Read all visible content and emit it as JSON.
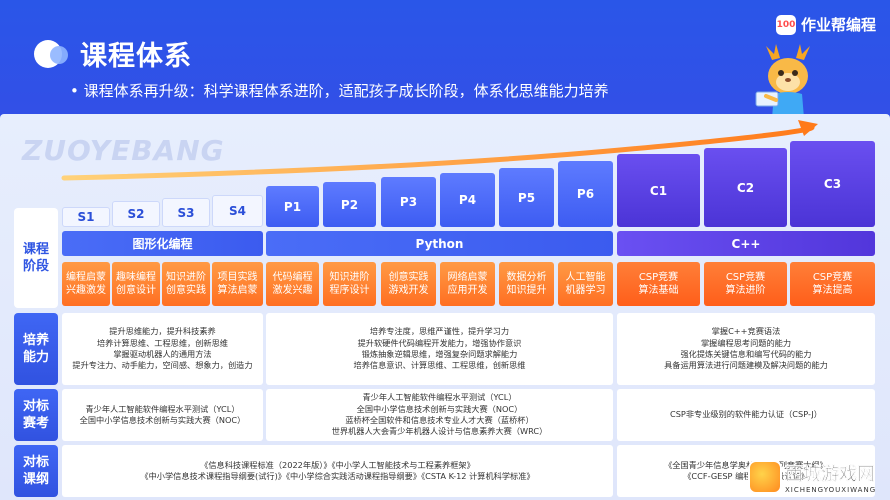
{
  "header": {
    "title": "课程体系",
    "subtitle": "• 课程体系再升级：科学课程体系进阶，适配孩子成长阶段，体系化思维能力培养",
    "brand_icon_text": "100",
    "brand_name": "作业帮编程"
  },
  "watermark": "ZUOYEBANG",
  "levels": [
    "S1",
    "S2",
    "S3",
    "S4",
    "P1",
    "P2",
    "P3",
    "P4",
    "P5",
    "P6",
    "C1",
    "C2",
    "C3"
  ],
  "tracks": [
    {
      "label": "图形化编程"
    },
    {
      "label": "Python"
    },
    {
      "label": "C++"
    }
  ],
  "stage_label": "课程\n阶段",
  "topics": [
    "编程启蒙\n兴趣激发",
    "趣味编程\n创意设计",
    "知识进阶\n创意实践",
    "项目实践\n算法启蒙",
    "代码编程\n激发兴趣",
    "知识进阶\n程序设计",
    "创意实践\n游戏开发",
    "网络启蒙\n应用开发",
    "数据分析\n知识提升",
    "人工智能\n机器学习",
    "CSP竞赛\n算法基础",
    "CSP竞赛\n算法进阶",
    "CSP竞赛\n算法提高"
  ],
  "rows": [
    {
      "label": "培养\n能力",
      "cells": [
        [
          "提升思维能力，提升科技素养",
          "培养计算思维、工程思维，创新思维",
          "掌握驱动机器人的通用方法",
          "提升专注力、动手能力，空间感、想象力，创造力"
        ],
        [
          "培养专注度，思维严谨性，提升学习力",
          "提升软硬件代码编程开发能力，增强协作意识",
          "锻炼抽象逆辑思维，增强复杂问题求解能力",
          "培养信息意识、计算思维、工程思维，创新思维"
        ],
        [
          "掌握C++竞赛语法",
          "掌握编程思考问题的能力",
          "强化提炼关键信息和编写代码的能力",
          "具备运用算法进行问题建模及解决问题的能力"
        ]
      ]
    },
    {
      "label": "对标\n赛考",
      "cells": [
        [
          "青少年人工智能软件编程水平测试（YCL）",
          "全国中小学信息技术创新与实践大赛（NOC）"
        ],
        [
          "青少年人工智能软件编程水平测试（YCL）",
          "全国中小学信息技术创新与实践大赛（NOC）",
          "蓝桥杯全国软件和信息技术专业人才大赛（蓝桥杯）",
          "世界机器人大会青少年机器人设计与信息素养大赛（WRC）"
        ],
        [
          "CSP非专业级别的软件能力认证（CSP-J）"
        ]
      ]
    },
    {
      "label": "对标\n课纲",
      "cells": [
        [
          "《信息科技课程标准（2022年版）》《中小学人工智能技术与工程素养框架》",
          "《中小学信息技术课程指导纲要(试行)》《中小学综合实践活动课程指导纲要》《CSTA K-12 计算机科学标准》"
        ],
        [
          "《全国青少年信息学奥林匹克系列竞赛大纲》",
          "《CCF-GESP 编程能力等级认证》"
        ]
      ]
    }
  ],
  "game_logo": {
    "main": "西城游戏网",
    "sub": "XICHENGYOUXIWANG"
  },
  "colors": {
    "primary_blue": "#3b5bef",
    "purple": "#5236db",
    "orange": "#ff6f22"
  }
}
